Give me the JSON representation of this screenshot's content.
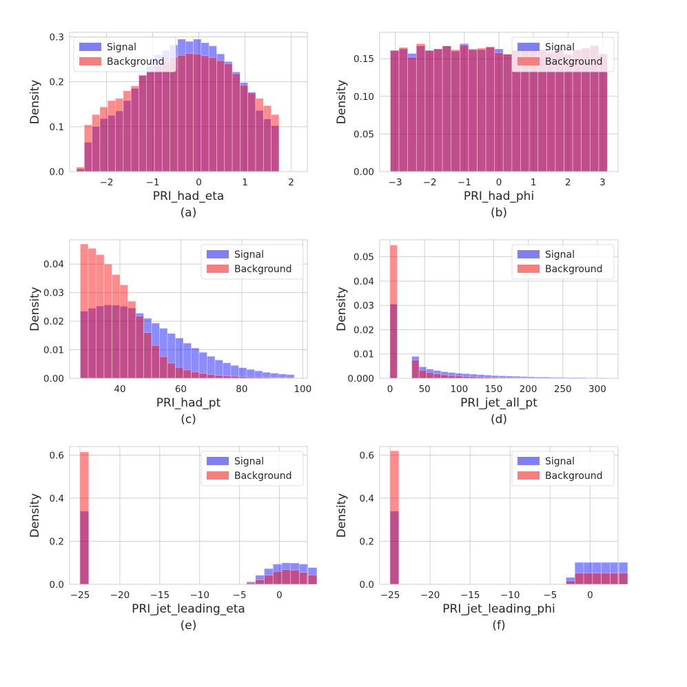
{
  "figure": {
    "legend_labels": [
      "Signal",
      "Background"
    ],
    "colors": {
      "signal": "#7f7ff2",
      "background": "#f47f7f",
      "overlap": "#b8508f",
      "grid": "#cfcfcf",
      "axis_frame": "#cccccc",
      "text": "#262626"
    }
  },
  "chart_data": [
    {
      "type": "histogram",
      "panel_label": "(a)",
      "xlabel": "PRI_had_eta",
      "ylabel": "Density",
      "legend": "top-left",
      "xlim": [
        -2.8,
        2.35
      ],
      "ylim": [
        0,
        0.31
      ],
      "xticks": [
        -2,
        -1,
        0,
        1,
        2
      ],
      "xtick_labels": [
        "−2",
        "−1",
        "0",
        "1",
        "2"
      ],
      "yticks": [
        0,
        0.1,
        0.2,
        0.3
      ],
      "ytick_labels": [
        "0.0",
        "0.1",
        "0.2",
        "0.3"
      ],
      "bin_start": -2.65,
      "bin_width": 0.1687,
      "series": [
        {
          "name": "Signal",
          "values": [
            0.006,
            0.065,
            0.1,
            0.118,
            0.125,
            0.135,
            0.158,
            0.185,
            0.215,
            0.235,
            0.26,
            0.27,
            0.282,
            0.295,
            0.29,
            0.295,
            0.287,
            0.28,
            0.262,
            0.245,
            0.222,
            0.198,
            0.177,
            0.136,
            0.117,
            0.102
          ]
        },
        {
          "name": "Background",
          "values": [
            0.01,
            0.104,
            0.127,
            0.144,
            0.158,
            0.163,
            0.18,
            0.191,
            0.214,
            0.222,
            0.235,
            0.244,
            0.255,
            0.259,
            0.263,
            0.262,
            0.258,
            0.254,
            0.247,
            0.24,
            0.218,
            0.192,
            0.175,
            0.163,
            0.147,
            0.127
          ]
        }
      ]
    },
    {
      "type": "histogram",
      "panel_label": "(b)",
      "xlabel": "PRI_had_phi",
      "ylabel": "Density",
      "legend": "top-right",
      "xlim": [
        -3.45,
        3.45
      ],
      "ylim": [
        0,
        0.185
      ],
      "xticks": [
        -3,
        -2,
        -1,
        0,
        1,
        2,
        3
      ],
      "xtick_labels": [
        "−3",
        "−2",
        "−1",
        "0",
        "1",
        "2",
        "3"
      ],
      "yticks": [
        0,
        0.05,
        0.1,
        0.15
      ],
      "ytick_labels": [
        "0.00",
        "0.05",
        "0.10",
        "0.15"
      ],
      "bin_start": -3.1416,
      "bin_width": 0.2513,
      "series": [
        {
          "name": "Signal",
          "values": [
            0.161,
            0.163,
            0.157,
            0.167,
            0.161,
            0.163,
            0.167,
            0.16,
            0.17,
            0.163,
            0.162,
            0.165,
            0.163,
            0.156,
            0.161,
            0.163,
            0.168,
            0.162,
            0.159,
            0.166,
            0.155,
            0.162,
            0.164,
            0.168,
            0.157
          ]
        },
        {
          "name": "Background",
          "values": [
            0.161,
            0.165,
            0.152,
            0.17,
            0.161,
            0.163,
            0.167,
            0.162,
            0.168,
            0.162,
            0.164,
            0.166,
            0.158,
            0.156,
            0.161,
            0.163,
            0.165,
            0.162,
            0.158,
            0.163,
            0.157,
            0.162,
            0.164,
            0.167,
            0.156
          ]
        }
      ]
    },
    {
      "type": "histogram",
      "panel_label": "(c)",
      "xlabel": "PRI_had_pt",
      "ylabel": "Density",
      "legend": "top-right",
      "xlim": [
        23.5,
        101.5
      ],
      "ylim": [
        0,
        0.0485
      ],
      "xticks": [
        40,
        60,
        80,
        100
      ],
      "xtick_labels": [
        "40",
        "60",
        "80",
        "100"
      ],
      "yticks": [
        0,
        0.01,
        0.02,
        0.03,
        0.04
      ],
      "ytick_labels": [
        "0.00",
        "0.01",
        "0.02",
        "0.03",
        "0.04"
      ],
      "bin_start": 27,
      "bin_width": 2.6,
      "series": [
        {
          "name": "Signal",
          "values": [
            0.0235,
            0.0245,
            0.0253,
            0.0257,
            0.0256,
            0.0252,
            0.0246,
            0.0228,
            0.021,
            0.0193,
            0.0175,
            0.0157,
            0.0141,
            0.0123,
            0.0106,
            0.0091,
            0.0077,
            0.0064,
            0.0054,
            0.0045,
            0.0037,
            0.0031,
            0.0026,
            0.0021,
            0.0018,
            0.0015,
            0.0013
          ]
        },
        {
          "name": "Background",
          "values": [
            0.047,
            0.0455,
            0.0433,
            0.04,
            0.0363,
            0.0327,
            0.027,
            0.0218,
            0.016,
            0.0115,
            0.0075,
            0.0053,
            0.0038,
            0.0029,
            0.0022,
            0.0017,
            0.0013,
            0.001,
            0.0008,
            0.0007,
            0.0005,
            0.0004,
            0.0004,
            0.0003,
            0.0002,
            0.0002,
            0.0002
          ]
        }
      ]
    },
    {
      "type": "histogram",
      "panel_label": "(d)",
      "xlabel": "PRI_jet_all_pt",
      "ylabel": "Density",
      "legend": "top-right",
      "xlim": [
        -15,
        330
      ],
      "ylim": [
        0,
        0.057
      ],
      "xticks": [
        0,
        50,
        100,
        150,
        200,
        250,
        300
      ],
      "xtick_labels": [
        "0",
        "50",
        "100",
        "150",
        "200",
        "250",
        "300"
      ],
      "yticks": [
        0,
        0.01,
        0.02,
        0.03,
        0.04,
        0.05
      ],
      "ytick_labels": [
        "0.000",
        "0.01",
        "0.02",
        "0.03",
        "0.04",
        "0.05"
      ],
      "bin_start": 0,
      "bin_width": 10.5,
      "series": [
        {
          "name": "Signal",
          "values": [
            0.0305,
            0,
            0,
            0.009,
            0.0047,
            0.0038,
            0.0032,
            0.0027,
            0.0024,
            0.0021,
            0.0019,
            0.0017,
            0.0015,
            0.0013,
            0.0011,
            0.001,
            0.0009,
            0.0008,
            0.0007,
            0.0006,
            0.0005,
            0.0005,
            0.0004,
            0.0004,
            0.0003,
            0.0003,
            0.0003,
            0.0002,
            0.0002,
            0.0002
          ]
        },
        {
          "name": "Background",
          "values": [
            0.0548,
            0,
            0,
            0.0075,
            0.0033,
            0.0024,
            0.0018,
            0.0014,
            0.0011,
            0.0009,
            0.0007,
            0.0006,
            0.0005,
            0.0004,
            0.0003,
            0.0003,
            0.0002,
            0.0002,
            0.0002,
            0.0001,
            0.0001,
            0.0001,
            0.0001,
            0.0001,
            0.0001,
            0.0001,
            0,
            0,
            0,
            0
          ]
        }
      ]
    },
    {
      "type": "histogram",
      "panel_label": "(e)",
      "xlabel": "PRI_jet_leading_eta",
      "ylabel": "Density",
      "legend": "top-right",
      "xlim": [
        -26.3,
        3.5
      ],
      "ylim": [
        0,
        0.64
      ],
      "xticks": [
        -25,
        -20,
        -15,
        -10,
        -5,
        0
      ],
      "xtick_labels": [
        "−25",
        "−20",
        "−15",
        "−10",
        "−5",
        "0"
      ],
      "yticks": [
        0,
        0.2,
        0.4,
        0.6
      ],
      "ytick_labels": [
        "0.0",
        "0.2",
        "0.4",
        "0.6"
      ],
      "bin_start": -25,
      "bin_width": 1.1,
      "series": [
        {
          "name": "Signal",
          "values": [
            0.34,
            0,
            0,
            0,
            0,
            0,
            0,
            0,
            0,
            0,
            0,
            0,
            0,
            0,
            0,
            0,
            0,
            0,
            0,
            0.012,
            0.042,
            0.073,
            0.094,
            0.1,
            0.099,
            0.094,
            0.078
          ]
        },
        {
          "name": "Background",
          "values": [
            0.615,
            0,
            0,
            0,
            0,
            0,
            0,
            0,
            0,
            0,
            0,
            0,
            0,
            0,
            0,
            0,
            0,
            0,
            0,
            0.006,
            0.021,
            0.042,
            0.06,
            0.068,
            0.066,
            0.055,
            0.043
          ]
        }
      ]
    },
    {
      "type": "histogram",
      "panel_label": "(f)",
      "xlabel": "PRI_jet_leading_phi",
      "ylabel": "Density",
      "legend": "top-right",
      "xlim": [
        -26.3,
        3.5
      ],
      "ylim": [
        0,
        0.64
      ],
      "xticks": [
        -25,
        -20,
        -15,
        -10,
        -5,
        0
      ],
      "xtick_labels": [
        "−25",
        "−20",
        "−15",
        "−10",
        "−5",
        "0"
      ],
      "yticks": [
        0,
        0.2,
        0.4,
        0.6
      ],
      "ytick_labels": [
        "0.0",
        "0.2",
        "0.4",
        "0.6"
      ],
      "bin_start": -25,
      "bin_width": 1.1,
      "series": [
        {
          "name": "Signal",
          "values": [
            0.34,
            0,
            0,
            0,
            0,
            0,
            0,
            0,
            0,
            0,
            0,
            0,
            0,
            0,
            0,
            0,
            0,
            0,
            0,
            0,
            0.032,
            0.102,
            0.102,
            0.102,
            0.102,
            0.102,
            0.102
          ]
        },
        {
          "name": "Background",
          "values": [
            0.62,
            0,
            0,
            0,
            0,
            0,
            0,
            0,
            0,
            0,
            0,
            0,
            0,
            0,
            0,
            0,
            0,
            0,
            0,
            0,
            0.016,
            0.052,
            0.052,
            0.052,
            0.052,
            0.052,
            0.052
          ]
        }
      ]
    }
  ]
}
